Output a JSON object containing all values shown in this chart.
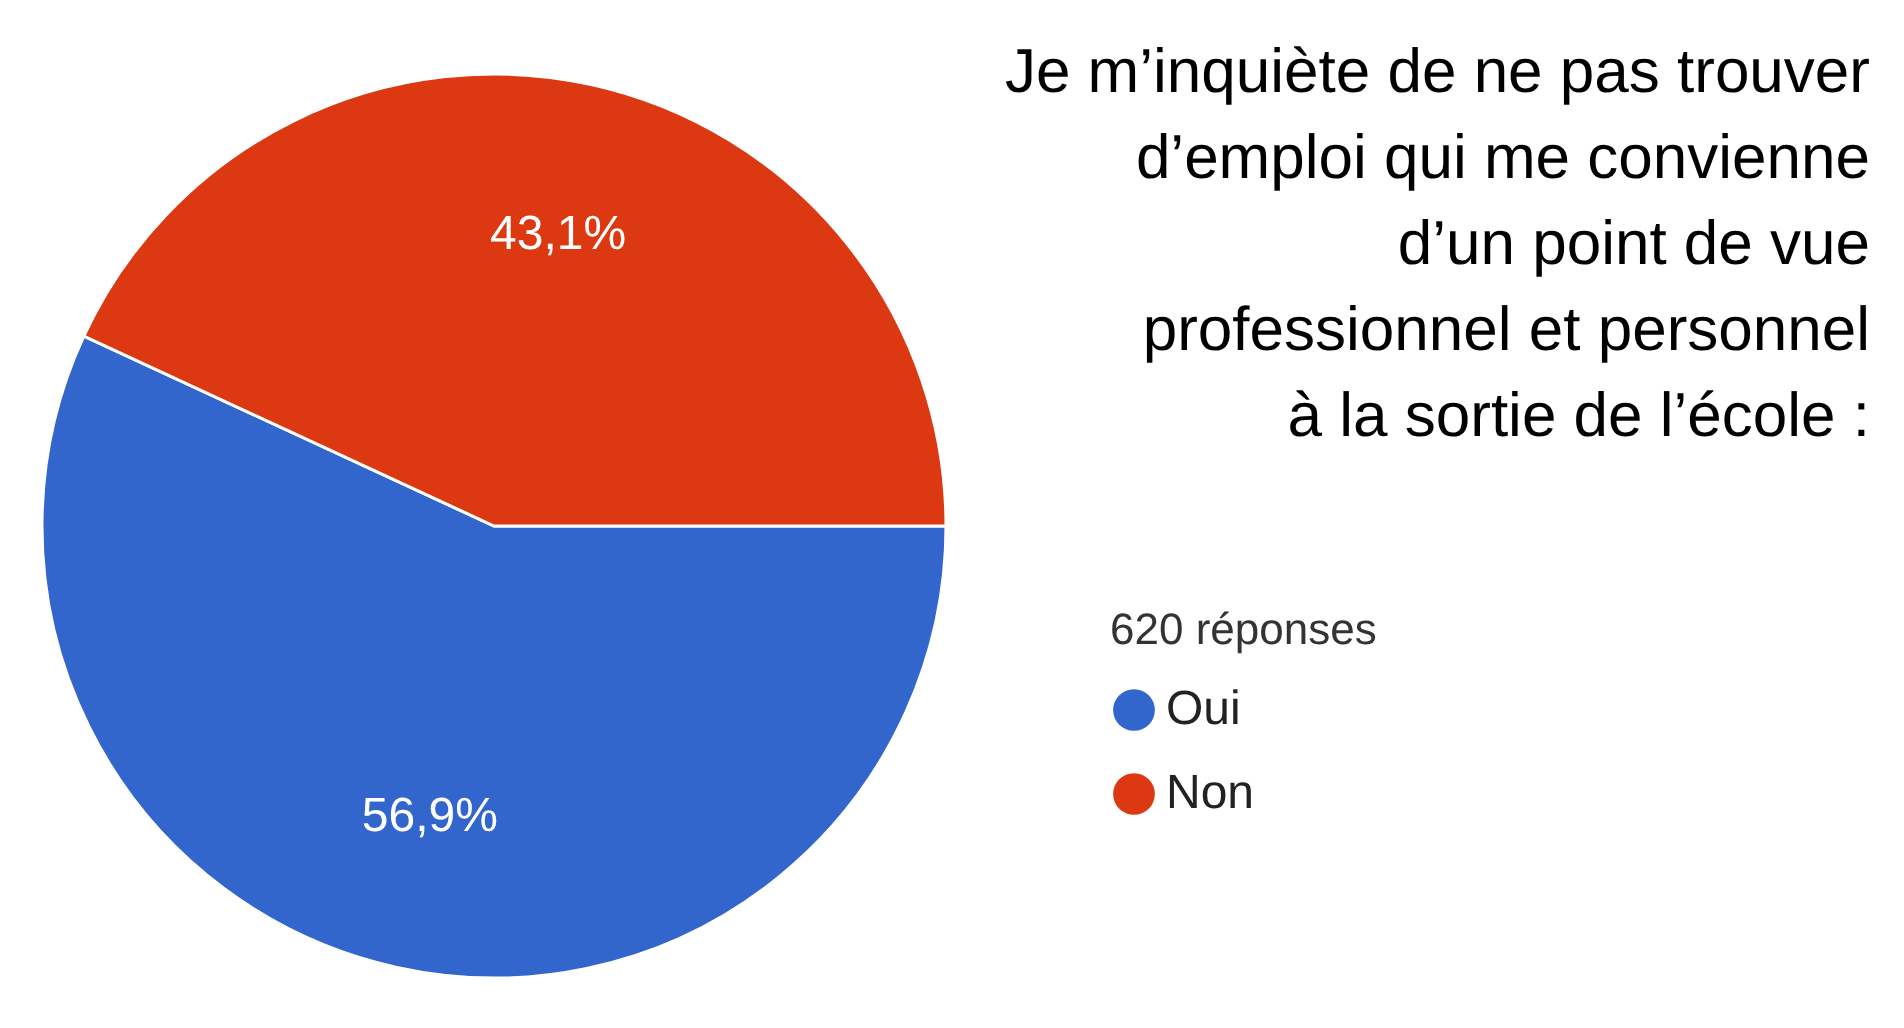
{
  "chart_data": {
    "type": "pie",
    "title": "Je m’inquiète de ne pas trouver\nd’emploi qui me convienne\nd’un point de vue\nprofessionnel et personnel\nà la sortie de l’école :",
    "legend_title": "620 réponses",
    "categories": [
      "Oui",
      "Non"
    ],
    "values": [
      56.9,
      43.1
    ],
    "colors": [
      "#3366cc",
      "#dc3912"
    ],
    "value_labels": [
      "56,9%",
      "43,1%"
    ],
    "legend": "right"
  }
}
